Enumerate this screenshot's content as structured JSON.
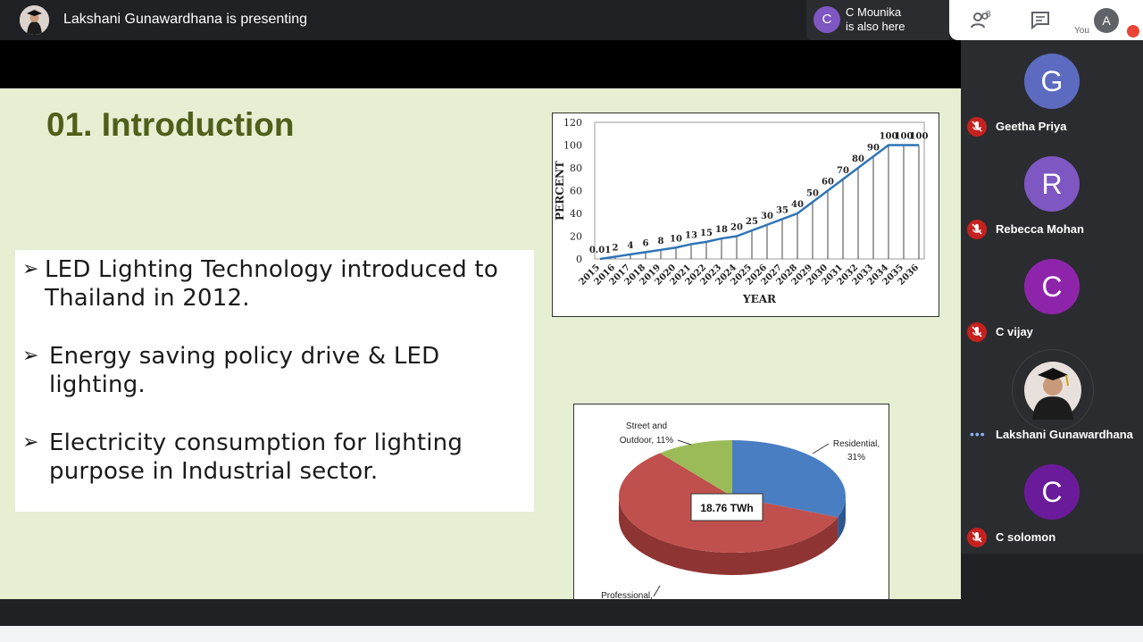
{
  "topbar": {
    "presenting_text": "Lakshani Gunawardhana is presenting",
    "also_here": {
      "initial": "C",
      "name": "C Mounika",
      "status": "is also here"
    },
    "people_count": "8",
    "you_label": "You",
    "self_initial": "A"
  },
  "slide": {
    "title": "01. Introduction",
    "bullets": [
      {
        "arrow": "➢",
        "lines": [
          "LED Lighting Technology introduced to",
          "Thailand in 2012."
        ]
      },
      {
        "arrow": "➢",
        "lines": [
          "Energy saving policy drive & LED",
          "lighting."
        ]
      },
      {
        "arrow": "➢",
        "lines": [
          "Electricity consumption for lighting",
          "purpose in Industrial sector."
        ]
      }
    ]
  },
  "chart_data": [
    {
      "type": "line",
      "xlabel": "YEAR",
      "ylabel": "PERCENT",
      "ylim": [
        0,
        120
      ],
      "yticks": [
        "0",
        "20",
        "40",
        "60",
        "80",
        "100",
        "120"
      ],
      "x": [
        "2015",
        "2016",
        "2017",
        "2018",
        "2019",
        "2020",
        "2021",
        "2022",
        "2023",
        "2024",
        "2025",
        "2026",
        "2027",
        "2028",
        "2029",
        "2030",
        "2031",
        "2032",
        "2033",
        "2034",
        "2035",
        "2036"
      ],
      "values": [
        0.01,
        2,
        4,
        6,
        8,
        10,
        13,
        15,
        18,
        20,
        25,
        30,
        35,
        40,
        50,
        60,
        70,
        80,
        90,
        100,
        100,
        100
      ],
      "data_labels": [
        "0.01",
        "2",
        "4",
        "6",
        "8",
        "10",
        "13",
        "15",
        "18",
        "20",
        "25",
        "30",
        "35",
        "40",
        "50",
        "60",
        "70",
        "80",
        "90",
        "100",
        "100",
        "100"
      ],
      "line_color": "#2e75b6"
    },
    {
      "type": "pie",
      "center_label": "18.76 TWh",
      "slices": [
        {
          "label": "Residential,",
          "pct_label": "31%",
          "value": 31,
          "color": "#4a7ec2"
        },
        {
          "label": "Professional,",
          "pct_label": "",
          "value": 58,
          "color": "#c0504d"
        },
        {
          "label": "Street and",
          "label2": "Outdoor, 11%",
          "value": 11,
          "color": "#9bbb59"
        }
      ]
    }
  ],
  "participants": [
    {
      "initial": "G",
      "name": "Geetha Priya",
      "color": "#5c6bc0",
      "muted": true
    },
    {
      "initial": "R",
      "name": "Rebecca Mohan",
      "color": "#7e57c2",
      "muted": true
    },
    {
      "initial": "C",
      "name": "C vijay",
      "color": "#8e24aa",
      "muted": true
    },
    {
      "initial": "",
      "name": "Lakshani Gunawardhana",
      "color": "#e8e0dc",
      "muted": false,
      "speaking": "•••"
    },
    {
      "initial": "C",
      "name": "C solomon",
      "color": "#6a1b9a",
      "muted": true
    }
  ]
}
